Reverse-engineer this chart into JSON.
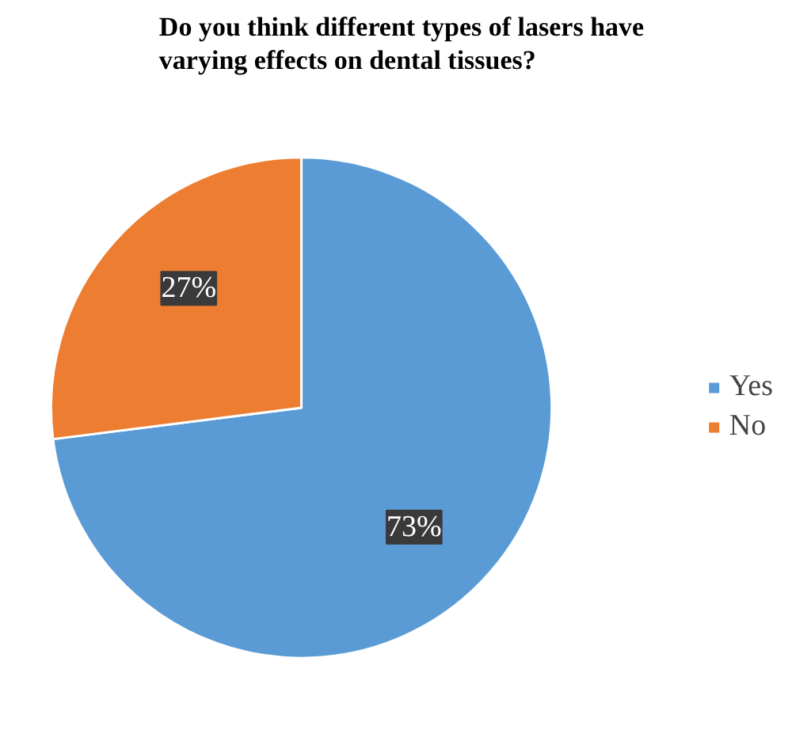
{
  "chart_data": {
    "type": "pie",
    "title": "Do you think different types of lasers have varying effects on dental tissues?",
    "categories": [
      "Yes",
      "No"
    ],
    "values": [
      73,
      27
    ],
    "colors": [
      "#5b9bd5",
      "#ed7d31"
    ],
    "value_labels": [
      "73%",
      "27%"
    ],
    "legend": "right"
  }
}
